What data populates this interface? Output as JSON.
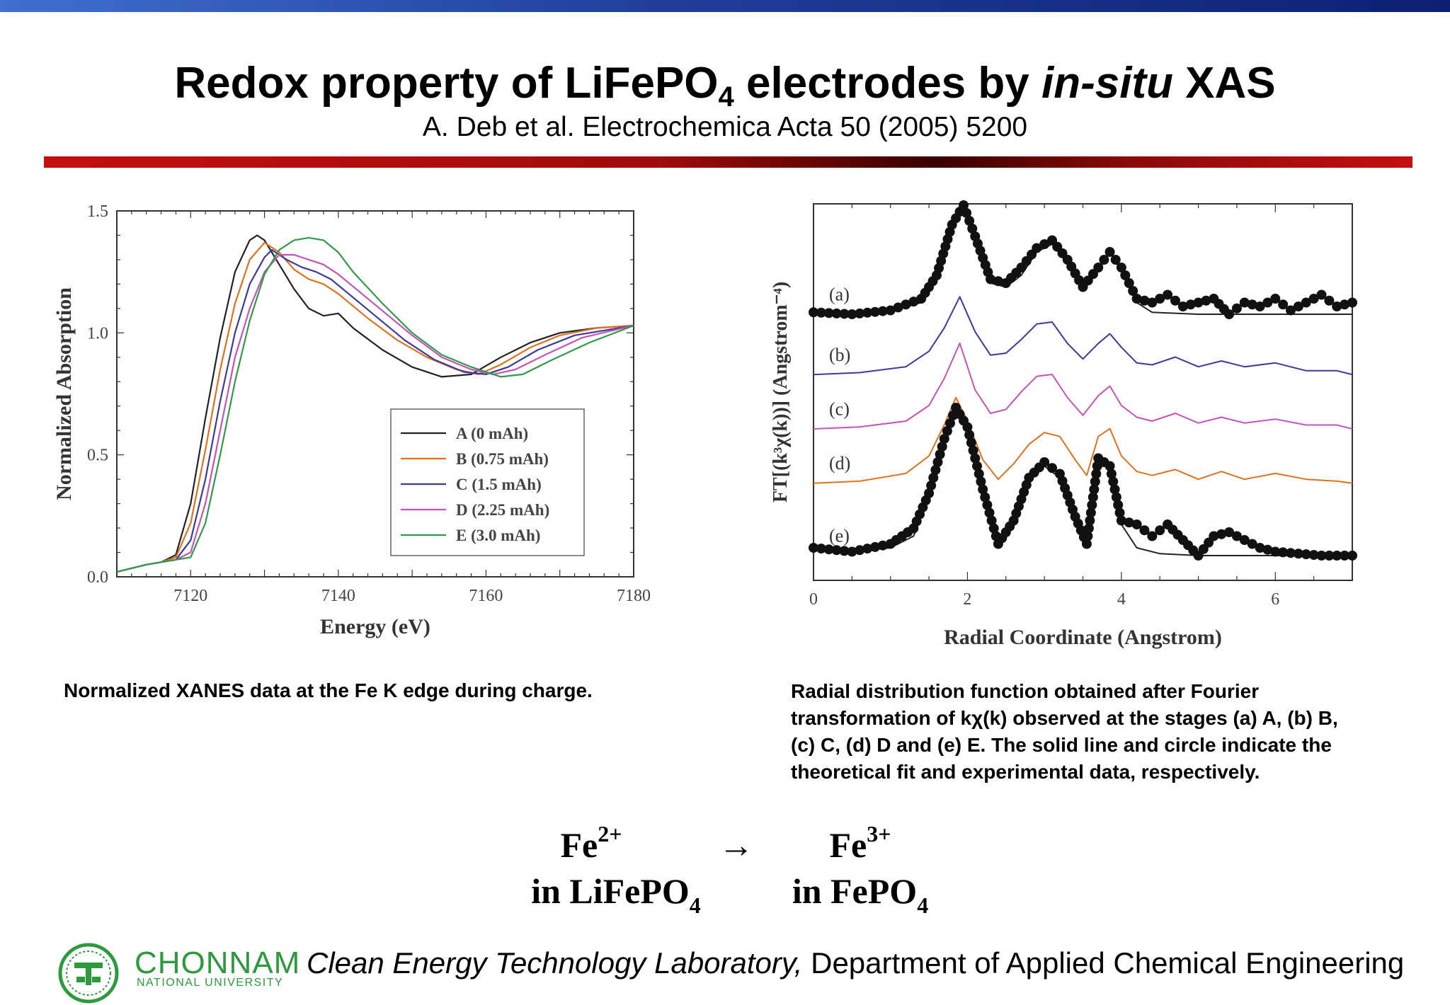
{
  "slide": {
    "title_part1": "Redox property of LiFePO",
    "title_sub": "4",
    "title_part2": " electrodes by ",
    "title_italic": "in-situ",
    "title_part3": " XAS",
    "subtitle": "A. Deb et al. Electrochemica Acta 50 (2005) 5200",
    "caption_left": "Normalized XANES data at the Fe K edge during charge.",
    "caption_right": "Radial distribution function obtained after Fourier transformation of kχ(k) observed at the stages (a) A, (b) B, (c) C, (d) D and (e) E. The solid line and circle indicate the theoretical fit and experimental data, respectively.",
    "colors": {
      "top_bar": "#1f3f9a",
      "red_rule": "#b00d0d",
      "logo_green": "#2d9a3c"
    }
  },
  "equation": {
    "left_species": "Fe",
    "left_charge": "2+",
    "arrow": "→",
    "right_species": "Fe",
    "right_charge": "3+",
    "left_host_prefix": "in LiFePO",
    "left_host_sub": "4",
    "right_host_prefix": "in FePO",
    "right_host_sub": "4"
  },
  "footer": {
    "logo_icon": "chonnam-university-seal-icon",
    "university_name": "CHONNAM",
    "university_sub": "NATIONAL UNIVERSITY",
    "lab_italic": "Clean Energy Technology Laboratory,",
    "department": " Department of Applied Chemical Engineering"
  },
  "chart_data": [
    {
      "type": "line",
      "title": "",
      "xlabel": "Energy (eV)",
      "ylabel": "Normalized Absorption",
      "xlim": [
        7110,
        7180
      ],
      "ylim": [
        0.0,
        1.5
      ],
      "xticks": [
        7120,
        7140,
        7160,
        7180
      ],
      "yticks": [
        "0.0",
        "0.5",
        "1.0",
        "1.5"
      ],
      "legend_position": "lower-right",
      "grid": false,
      "series": [
        {
          "name": "A (0 mAh)",
          "color": "#222222",
          "x": [
            7110,
            7114,
            7116,
            7118,
            7120,
            7122,
            7124,
            7126,
            7128,
            7129,
            7130,
            7132,
            7134,
            7136,
            7138,
            7140,
            7142,
            7146,
            7150,
            7154,
            7158,
            7162,
            7166,
            7170,
            7175,
            7180
          ],
          "y": [
            0.02,
            0.05,
            0.06,
            0.09,
            0.3,
            0.65,
            0.98,
            1.25,
            1.38,
            1.4,
            1.38,
            1.28,
            1.18,
            1.1,
            1.07,
            1.08,
            1.02,
            0.93,
            0.86,
            0.82,
            0.83,
            0.9,
            0.96,
            1.0,
            1.02,
            1.03
          ]
        },
        {
          "name": "B (0.75 mAh)",
          "color": "#e0711d",
          "x": [
            7110,
            7114,
            7116,
            7118,
            7120,
            7122,
            7124,
            7126,
            7128,
            7130,
            7132,
            7134,
            7136,
            7138,
            7140,
            7144,
            7148,
            7152,
            7156,
            7159,
            7162,
            7166,
            7170,
            7175,
            7180
          ],
          "y": [
            0.02,
            0.05,
            0.06,
            0.08,
            0.22,
            0.52,
            0.85,
            1.12,
            1.3,
            1.37,
            1.33,
            1.26,
            1.22,
            1.2,
            1.16,
            1.06,
            0.97,
            0.9,
            0.85,
            0.83,
            0.87,
            0.94,
            0.99,
            1.02,
            1.03
          ]
        },
        {
          "name": "C (1.5 mAh)",
          "color": "#3a3a9c",
          "x": [
            7110,
            7114,
            7116,
            7118,
            7120,
            7122,
            7124,
            7126,
            7128,
            7130,
            7131,
            7133,
            7135,
            7137,
            7139,
            7141,
            7145,
            7149,
            7153,
            7157,
            7160,
            7163,
            7167,
            7172,
            7180
          ],
          "y": [
            0.02,
            0.05,
            0.06,
            0.07,
            0.15,
            0.4,
            0.72,
            1.0,
            1.2,
            1.31,
            1.34,
            1.3,
            1.27,
            1.25,
            1.22,
            1.17,
            1.07,
            0.97,
            0.89,
            0.84,
            0.83,
            0.86,
            0.93,
            0.99,
            1.03
          ]
        },
        {
          "name": "D (2.25 mAh)",
          "color": "#c653b5",
          "x": [
            7110,
            7114,
            7116,
            7118,
            7120,
            7122,
            7124,
            7126,
            7128,
            7130,
            7132,
            7134,
            7136,
            7138,
            7140,
            7142,
            7146,
            7150,
            7154,
            7158,
            7161,
            7164,
            7168,
            7173,
            7180
          ],
          "y": [
            0.02,
            0.05,
            0.06,
            0.07,
            0.1,
            0.3,
            0.6,
            0.9,
            1.1,
            1.25,
            1.32,
            1.32,
            1.3,
            1.28,
            1.24,
            1.19,
            1.09,
            0.99,
            0.9,
            0.85,
            0.83,
            0.85,
            0.91,
            0.98,
            1.03
          ]
        },
        {
          "name": "E (3.0 mAh)",
          "color": "#2f9a48",
          "x": [
            7110,
            7114,
            7116,
            7118,
            7120,
            7122,
            7124,
            7126,
            7128,
            7130,
            7132,
            7134,
            7136,
            7138,
            7140,
            7142,
            7146,
            7150,
            7154,
            7158,
            7162,
            7165,
            7169,
            7174,
            7180
          ],
          "y": [
            0.02,
            0.05,
            0.06,
            0.07,
            0.08,
            0.22,
            0.5,
            0.8,
            1.05,
            1.24,
            1.34,
            1.38,
            1.39,
            1.38,
            1.33,
            1.25,
            1.12,
            1.0,
            0.91,
            0.86,
            0.82,
            0.83,
            0.89,
            0.96,
            1.03
          ]
        }
      ]
    },
    {
      "type": "line",
      "title": "",
      "xlabel": "Radial Coordinate (Angstrom)",
      "ylabel": "FT[(k³χ(k))] (Angstrom⁻⁴)",
      "xlim": [
        0,
        7
      ],
      "xticks": [
        0,
        2,
        4,
        6
      ],
      "y_ticks_labeled": false,
      "stage_labels": [
        "(a)",
        "(b)",
        "(c)",
        "(d)",
        "(e)"
      ],
      "grid": false,
      "series": [
        {
          "name": "(a)",
          "kind": "theoretical fit",
          "color": "#222222",
          "offset": 4.0,
          "x": [
            0,
            0.5,
            1.0,
            1.4,
            1.6,
            1.8,
            1.95,
            2.1,
            2.3,
            2.5,
            2.7,
            2.9,
            3.1,
            3.3,
            3.5,
            3.7,
            3.85,
            4.0,
            4.2,
            4.4,
            5.0,
            6.0,
            7.0
          ],
          "y": [
            0.05,
            0.05,
            0.08,
            0.3,
            0.9,
            2.2,
            2.7,
            1.9,
            0.8,
            0.7,
            1.0,
            1.6,
            1.8,
            1.3,
            0.6,
            1.1,
            1.6,
            1.1,
            0.3,
            0.05,
            0.0,
            0.0,
            0.0
          ]
        },
        {
          "name": "(a)",
          "kind": "experimental data",
          "color": "#111111",
          "offset": 4.0,
          "markers": "circle",
          "x": [
            0,
            0.5,
            1.0,
            1.4,
            1.6,
            1.8,
            1.95,
            2.1,
            2.3,
            2.5,
            2.7,
            2.9,
            3.1,
            3.3,
            3.5,
            3.7,
            3.85,
            4.0,
            4.2,
            4.4,
            4.6,
            4.8,
            5.0,
            5.2,
            5.4,
            5.6,
            5.8,
            6.0,
            6.2,
            6.4,
            6.6,
            6.8,
            7.0
          ],
          "y": [
            0.05,
            0.0,
            0.1,
            0.4,
            1.0,
            2.3,
            2.8,
            2.0,
            0.9,
            0.8,
            1.2,
            1.7,
            1.9,
            1.4,
            0.7,
            1.2,
            1.6,
            1.2,
            0.4,
            0.3,
            0.5,
            0.2,
            0.3,
            0.4,
            0.0,
            0.3,
            0.2,
            0.4,
            0.1,
            0.3,
            0.5,
            0.2,
            0.3
          ]
        },
        {
          "name": "(b)",
          "color": "#3a3a9c",
          "offset": 3.0,
          "x": [
            0,
            0.6,
            1.2,
            1.5,
            1.7,
            1.9,
            2.1,
            2.3,
            2.5,
            2.7,
            2.9,
            3.1,
            3.3,
            3.5,
            3.7,
            3.85,
            4.0,
            4.2,
            4.4,
            4.7,
            5.0,
            5.3,
            5.6,
            6.0,
            6.4,
            6.8,
            7.0
          ],
          "y": [
            0.0,
            0.05,
            0.2,
            0.6,
            1.2,
            2.0,
            1.1,
            0.5,
            0.55,
            0.9,
            1.3,
            1.35,
            0.8,
            0.4,
            0.8,
            1.05,
            0.7,
            0.3,
            0.25,
            0.45,
            0.2,
            0.35,
            0.2,
            0.3,
            0.1,
            0.1,
            0.0
          ]
        },
        {
          "name": "(c)",
          "color": "#c653b5",
          "offset": 2.1,
          "x": [
            0,
            0.6,
            1.2,
            1.5,
            1.7,
            1.9,
            2.1,
            2.3,
            2.5,
            2.7,
            2.9,
            3.1,
            3.3,
            3.5,
            3.7,
            3.85,
            4.0,
            4.2,
            4.4,
            4.7,
            5.0,
            5.3,
            5.6,
            6.0,
            6.4,
            6.8,
            7.0
          ],
          "y": [
            0.0,
            0.05,
            0.2,
            0.6,
            1.3,
            2.2,
            1.0,
            0.4,
            0.5,
            0.95,
            1.35,
            1.4,
            0.8,
            0.35,
            0.85,
            1.1,
            0.6,
            0.3,
            0.2,
            0.4,
            0.15,
            0.3,
            0.15,
            0.25,
            0.1,
            0.1,
            0.0
          ]
        },
        {
          "name": "(d)",
          "color": "#e0711d",
          "offset": 1.2,
          "x": [
            0,
            0.6,
            1.2,
            1.5,
            1.7,
            1.85,
            2.0,
            2.2,
            2.4,
            2.6,
            2.8,
            3.0,
            3.2,
            3.4,
            3.55,
            3.7,
            3.85,
            4.0,
            4.2,
            4.4,
            4.7,
            5.0,
            5.3,
            5.6,
            6.0,
            6.4,
            6.8,
            7.0
          ],
          "y": [
            0.0,
            0.05,
            0.25,
            0.7,
            1.5,
            2.2,
            1.6,
            0.6,
            0.1,
            0.5,
            1.0,
            1.3,
            1.2,
            0.6,
            0.2,
            1.2,
            1.4,
            0.7,
            0.3,
            0.2,
            0.35,
            0.1,
            0.3,
            0.1,
            0.25,
            0.1,
            0.05,
            0.0
          ]
        },
        {
          "name": "(e)",
          "kind": "theoretical fit",
          "color": "#222222",
          "offset": 0.0,
          "x": [
            0,
            0.5,
            1.0,
            1.3,
            1.5,
            1.7,
            1.85,
            2.0,
            2.2,
            2.4,
            2.6,
            2.8,
            3.0,
            3.2,
            3.4,
            3.55,
            3.7,
            3.85,
            4.0,
            4.2,
            4.5,
            5.0,
            6.0,
            7.0
          ],
          "y": [
            0.2,
            0.1,
            0.2,
            0.5,
            1.5,
            3.0,
            3.7,
            3.2,
            1.6,
            0.4,
            0.8,
            1.9,
            2.3,
            2.0,
            0.9,
            0.2,
            2.4,
            2.3,
            0.8,
            0.2,
            0.05,
            0.0,
            0.0,
            0.0
          ]
        },
        {
          "name": "(e)",
          "kind": "experimental data",
          "color": "#111111",
          "offset": 0.0,
          "markers": "circle",
          "x": [
            0,
            0.5,
            1.0,
            1.3,
            1.5,
            1.7,
            1.85,
            2.0,
            2.2,
            2.4,
            2.6,
            2.8,
            3.0,
            3.2,
            3.4,
            3.55,
            3.7,
            3.85,
            4.0,
            4.2,
            4.4,
            4.6,
            4.8,
            5.0,
            5.2,
            5.4,
            5.6,
            5.8,
            6.0,
            6.3,
            6.6,
            7.0
          ],
          "y": [
            0.2,
            0.1,
            0.3,
            0.7,
            1.6,
            3.0,
            3.8,
            3.3,
            1.7,
            0.3,
            0.9,
            2.0,
            2.4,
            2.1,
            1.0,
            0.3,
            2.5,
            2.3,
            0.9,
            0.8,
            0.5,
            0.8,
            0.4,
            0.0,
            0.5,
            0.6,
            0.4,
            0.2,
            0.1,
            0.05,
            0.0,
            0.0
          ]
        }
      ]
    }
  ]
}
